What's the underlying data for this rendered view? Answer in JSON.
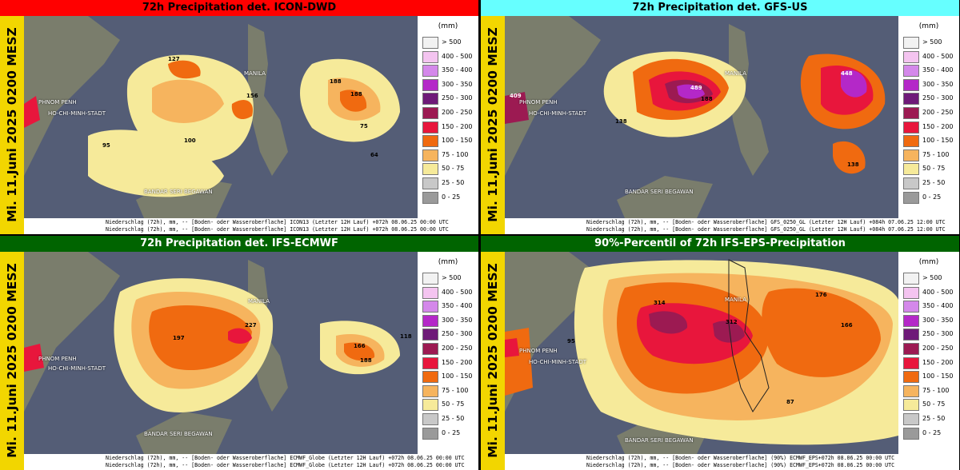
{
  "side_label": "Mi. 11.Juni 2025 0200 MESZ",
  "legend": {
    "unit": "(mm)",
    "classes": [
      {
        "label": "> 500",
        "color": "#f2f2f2"
      },
      {
        "label": "400 - 500",
        "color": "#f4c4f0"
      },
      {
        "label": "350 - 400",
        "color": "#d488ea"
      },
      {
        "label": "300 - 350",
        "color": "#b428c8"
      },
      {
        "label": "250 - 300",
        "color": "#6e1a78"
      },
      {
        "label": "200 - 250",
        "color": "#9c1a52"
      },
      {
        "label": "150 - 200",
        "color": "#e8163c"
      },
      {
        "label": "100 - 150",
        "color": "#f06a10"
      },
      {
        "label": "75 - 100",
        "color": "#f6b45e"
      },
      {
        "label": "50 - 75",
        "color": "#f6ea9a"
      },
      {
        "label": "25 - 50",
        "color": "#c8c8c8"
      },
      {
        "label": "0 - 25",
        "color": "#9a9a9a"
      }
    ]
  },
  "place_labels": {
    "manila": "MANILA",
    "phnom_penh": "PHNOM PENH",
    "hcmc": "HO-CHI-MINH-STADT",
    "bandar": "BANDAR SERI BEGAWAN"
  },
  "panels": [
    {
      "title": "72h Precipitation det. ICON-DWD",
      "title_color": "#ff0000",
      "footer_line1": "Niederschlag (72h), mm, -- [Boden- oder Wasseroberflache] ICON13 (Letzter 12H Lauf) +072h  08.06.25 00:00 UTC",
      "footer_line2": "Niederschlag (72h), mm, -- [Boden- oder Wasseroberflache] ICON13 (Letzter 12H Lauf) +072h  08.06.25 00:00 UTC",
      "values": [
        "127",
        "188",
        "156",
        "188",
        "75",
        "95",
        "100",
        "64"
      ]
    },
    {
      "title": "72h Precipitation det. GFS-US",
      "title_color": "#66ffff",
      "footer_line1": "Niederschlag (72h), mm, -- [Boden- oder Wasseroberflache] GFS_0250_GL (Letzter 12H Lauf) +084h  07.06.25 12:00 UTC",
      "footer_line2": "Niederschlag (72h), mm, -- [Boden- oder Wasseroberflache] GFS_0250_GL (Letzter 12H Lauf) +084h  07.06.25 12:00 UTC",
      "values": [
        "409",
        "489",
        "448",
        "188",
        "138",
        "138"
      ]
    },
    {
      "title": "72h Precipitation det. IFS-ECMWF",
      "title_color": "#006400",
      "footer_line1": "Niederschlag (72h), mm, -- [Boden- oder Wasseroberflache] ECMWF_Globe (Letzter 12H Lauf) +072h  08.06.25 00:00 UTC",
      "footer_line2": "Niederschlag (72h), mm, -- [Boden- oder Wasseroberflache] ECMWF_Globe (Letzter 12H Lauf) +072h  08.06.25 00:00 UTC",
      "values": [
        "197",
        "227",
        "166",
        "188",
        "118"
      ]
    },
    {
      "title": "90%-Percentil of 72h IFS-EPS-Precipitation",
      "title_color": "#006400",
      "footer_line1": "Niederschlag (72h), mm, -- [Boden- oder Wasseroberflache] (90%) ECMWF_EPS+072h  08.06.25 00:00 UTC",
      "footer_line2": "Niederschlag (72h), mm, -- [Boden- oder Wasseroberflache] (90%) ECMWF_EPS+072h  08.06.25 00:00 UTC",
      "values": [
        "314",
        "312",
        "176",
        "166",
        "87",
        "95"
      ]
    }
  ]
}
